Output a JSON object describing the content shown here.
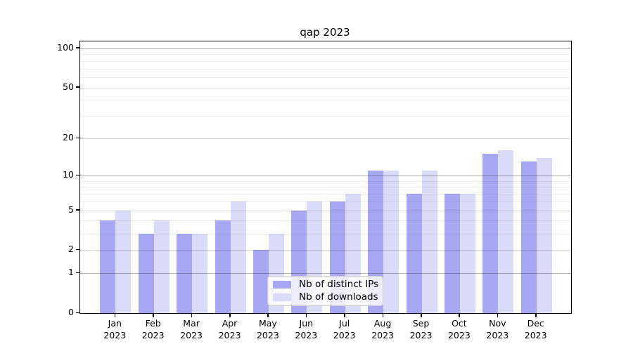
{
  "figure": {
    "title": "qap 2023"
  },
  "chart_data": {
    "type": "bar",
    "title": "qap 2023",
    "categories": [
      "Jan 2023",
      "Feb 2023",
      "Mar 2023",
      "Apr 2023",
      "May 2023",
      "Jun 2023",
      "Jul 2023",
      "Aug 2023",
      "Sep 2023",
      "Oct 2023",
      "Nov 2023",
      "Dec 2023"
    ],
    "x_tick_months": [
      "Jan",
      "Feb",
      "Mar",
      "Apr",
      "May",
      "Jun",
      "Jul",
      "Aug",
      "Sep",
      "Oct",
      "Nov",
      "Dec"
    ],
    "x_tick_year": "2023",
    "series": [
      {
        "name": "Nb of distinct IPs",
        "color": "#a7a7f3",
        "values": [
          4,
          3,
          3,
          4,
          2,
          5,
          6,
          11,
          7,
          7,
          15,
          13
        ]
      },
      {
        "name": "Nb of downloads",
        "color": "#dadaf9",
        "values": [
          5,
          4,
          3,
          6,
          3,
          6,
          7,
          11,
          11,
          7,
          16,
          14
        ]
      }
    ],
    "ylabel": "",
    "xlabel": "",
    "y_axis": {
      "scale": "log10(1+x)",
      "tick_values": [
        0,
        1,
        2,
        5,
        10,
        20,
        50,
        100
      ],
      "power_gridlines": [
        1,
        10,
        100
      ],
      "mid_gridlines": [
        2,
        5,
        20,
        50
      ],
      "minor_gridlines": [
        3,
        4,
        6,
        7,
        8,
        9,
        30,
        40,
        60,
        70,
        80,
        90
      ],
      "ylim": [
        0,
        112
      ]
    },
    "grid": true,
    "legend_position": "lower center"
  }
}
